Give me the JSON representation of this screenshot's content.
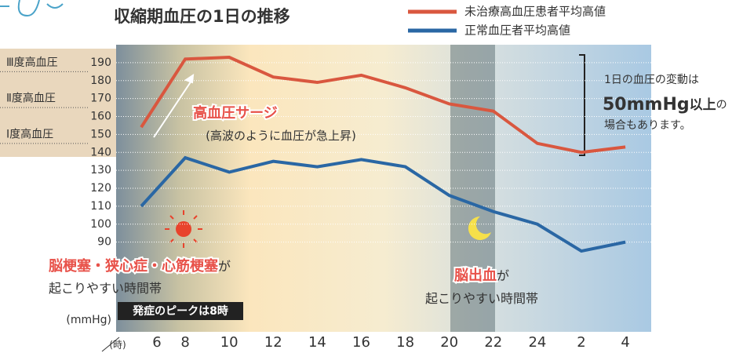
{
  "chart_data": {
    "type": "line",
    "title": "収縮期血圧の1日の推移",
    "categories": [
      "6",
      "8",
      "10",
      "12",
      "14",
      "16",
      "18",
      "20",
      "22",
      "24",
      "2",
      "4"
    ],
    "series": [
      {
        "name": "未治療高血圧患者平均高値",
        "color": "#d9573f",
        "values": [
          154,
          192,
          193,
          182,
          179,
          183,
          176,
          167,
          163,
          145,
          140,
          143
        ]
      },
      {
        "name": "正常血圧者平均高値",
        "color": "#2a67a4",
        "values": [
          110,
          137,
          129,
          135,
          132,
          136,
          132,
          116,
          107,
          100,
          85,
          90
        ]
      }
    ],
    "ylim": [
      40,
      200
    ],
    "yticks": [
      90,
      100,
      110,
      120,
      130,
      140,
      150,
      160,
      170,
      180,
      190
    ],
    "grid": true,
    "y_label": "(mmHg)",
    "x_label": "(時)",
    "band_labels": [
      "Ⅲ度高血圧",
      "Ⅱ度高血圧",
      "Ⅰ度高血圧"
    ],
    "annotations": [
      "高血圧サージ",
      "(高波のように血圧が急上昇)",
      "脳梗塞・狭心症・心筋梗塞",
      "が",
      "起こりやすい時間帯",
      "発症のピークは8時",
      "脳出血",
      "が",
      "起こりやすい時間帯",
      "1日の血圧の変動は",
      "50mmHg",
      "以上",
      "の",
      "場合もあります。"
    ]
  }
}
